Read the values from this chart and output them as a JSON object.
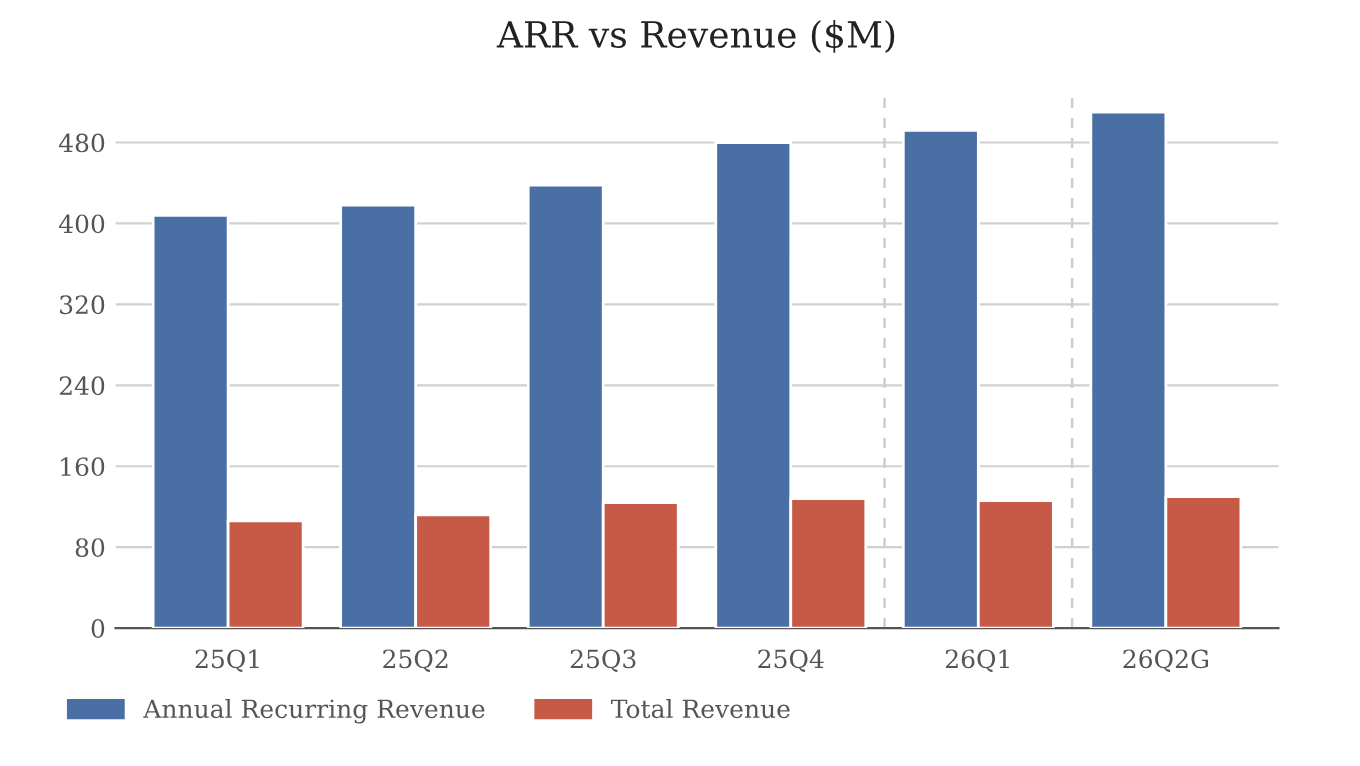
{
  "chart_data": {
    "type": "bar",
    "title": "ARR vs Revenue ($M)",
    "categories": [
      "25Q1",
      "25Q2",
      "25Q3",
      "25Q4",
      "26Q1",
      "26Q2G"
    ],
    "series": [
      {
        "name": "Annual Recurring Revenue",
        "color": "#4a6fa5",
        "values": [
          408,
          418,
          438,
          480,
          492,
          510
        ]
      },
      {
        "name": "Total Revenue",
        "color": "#c65a46",
        "values": [
          106,
          112,
          124,
          128,
          126,
          130
        ]
      }
    ],
    "ylim": [
      0,
      530
    ],
    "yticks": [
      0,
      80,
      160,
      240,
      320,
      400,
      480
    ],
    "grid": "y",
    "legend": "bottom left"
  }
}
